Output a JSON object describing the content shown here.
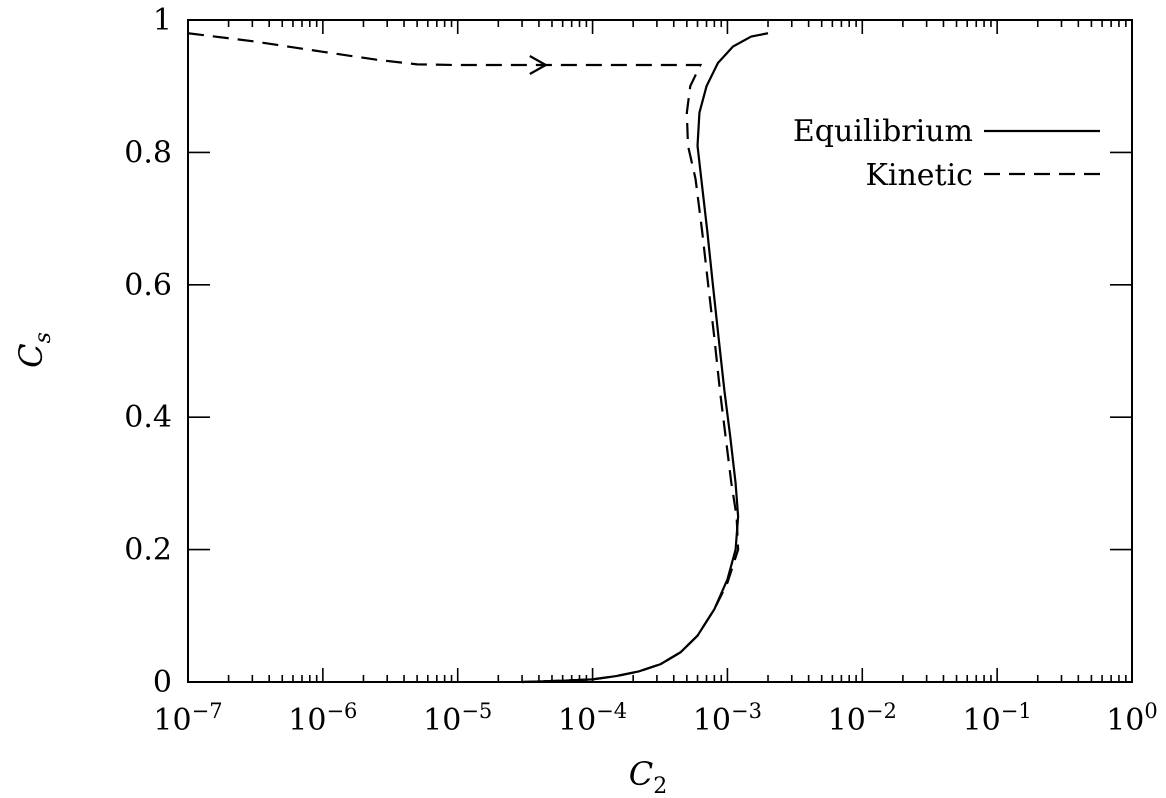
{
  "chart_data": {
    "type": "line",
    "xlabel": "C",
    "xlabel_sub": "2",
    "ylabel": "C",
    "ylabel_sub": "s",
    "xscale": "log",
    "xlim": [
      1e-07,
      1
    ],
    "ylim": [
      0,
      1
    ],
    "grid": false,
    "legend_position": "top-right",
    "x_ticks": [
      {
        "base": "10",
        "exp": "−7"
      },
      {
        "base": "10",
        "exp": "−6"
      },
      {
        "base": "10",
        "exp": "−5"
      },
      {
        "base": "10",
        "exp": "−4"
      },
      {
        "base": "10",
        "exp": "−3"
      },
      {
        "base": "10",
        "exp": "−2"
      },
      {
        "base": "10",
        "exp": "−1"
      },
      {
        "base": "10",
        "exp": "0"
      }
    ],
    "y_ticks": [
      "0",
      "0.2",
      "0.4",
      "0.6",
      "0.8",
      "1"
    ],
    "series": [
      {
        "name": "Equilibrium",
        "style": "solid",
        "points": [
          [
            3e-05,
            0.0
          ],
          [
            6e-05,
            0.002
          ],
          [
            0.0001,
            0.004
          ],
          [
            0.00015,
            0.009
          ],
          [
            0.00022,
            0.016
          ],
          [
            0.00032,
            0.027
          ],
          [
            0.00045,
            0.045
          ],
          [
            0.0006,
            0.07
          ],
          [
            0.0008,
            0.11
          ],
          [
            0.001,
            0.155
          ],
          [
            0.00115,
            0.2
          ],
          [
            0.0012,
            0.25
          ],
          [
            0.00115,
            0.3
          ],
          [
            0.00105,
            0.37
          ],
          [
            0.00095,
            0.44
          ],
          [
            0.00086,
            0.52
          ],
          [
            0.00078,
            0.6
          ],
          [
            0.00071,
            0.68
          ],
          [
            0.00064,
            0.76
          ],
          [
            0.0006,
            0.81
          ],
          [
            0.00062,
            0.86
          ],
          [
            0.0007,
            0.9
          ],
          [
            0.00085,
            0.935
          ],
          [
            0.0011,
            0.96
          ],
          [
            0.0015,
            0.975
          ],
          [
            0.002,
            0.98
          ]
        ]
      },
      {
        "name": "Kinetic",
        "style": "dashed",
        "points": [
          [
            1e-07,
            0.98
          ],
          [
            3e-07,
            0.968
          ],
          [
            1e-06,
            0.952
          ],
          [
            2.5e-06,
            0.94
          ],
          [
            5e-06,
            0.933
          ],
          [
            1e-05,
            0.932
          ],
          [
            0.0001,
            0.932
          ],
          [
            0.00063,
            0.932
          ],
          [
            0.00053,
            0.9
          ],
          [
            0.0005,
            0.86
          ],
          [
            0.00051,
            0.81
          ],
          [
            0.00058,
            0.76
          ],
          [
            0.00065,
            0.68
          ],
          [
            0.00072,
            0.6
          ],
          [
            0.0008,
            0.52
          ],
          [
            0.00088,
            0.44
          ],
          [
            0.00097,
            0.37
          ],
          [
            0.00107,
            0.3
          ],
          [
            0.00117,
            0.25
          ],
          [
            0.0012,
            0.2
          ],
          [
            0.001,
            0.15
          ],
          [
            0.0008,
            0.11
          ],
          [
            0.0006,
            0.07
          ],
          [
            0.00045,
            0.045
          ],
          [
            0.00032,
            0.027
          ],
          [
            0.00022,
            0.016
          ],
          [
            0.00015,
            0.009
          ],
          [
            0.0001,
            0.004
          ],
          [
            6e-05,
            0.002
          ],
          [
            3e-05,
            0.0
          ]
        ],
        "arrow_at": [
          4.5e-05,
          0.932
        ]
      }
    ]
  }
}
